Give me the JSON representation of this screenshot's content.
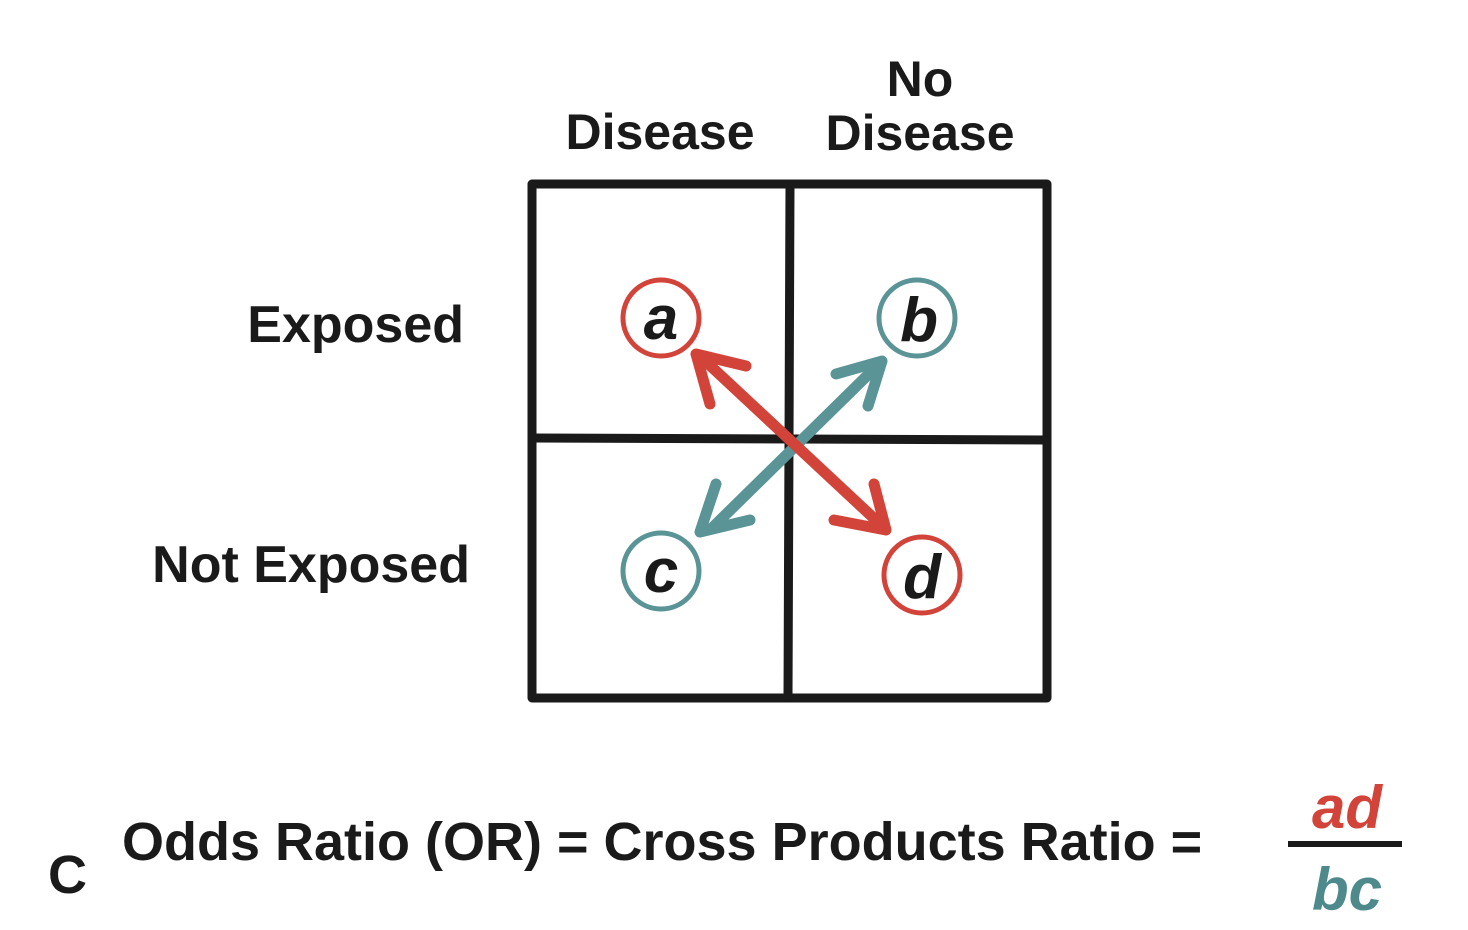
{
  "columns": {
    "disease": "Disease",
    "no_disease_line1": "No",
    "no_disease_line2": "Disease"
  },
  "rows": {
    "exposed": "Exposed",
    "not_exposed": "Not Exposed"
  },
  "cells": {
    "a": "a",
    "b": "b",
    "c": "c",
    "d": "d"
  },
  "panel_letter": "C",
  "formula": {
    "text": "Odds Ratio (OR) = Cross Products Ratio =",
    "numerator": "ad",
    "denominator": "bc"
  },
  "colors": {
    "red": "#d2443a",
    "teal": "#5a9496",
    "grid": "#1a1a1a"
  }
}
